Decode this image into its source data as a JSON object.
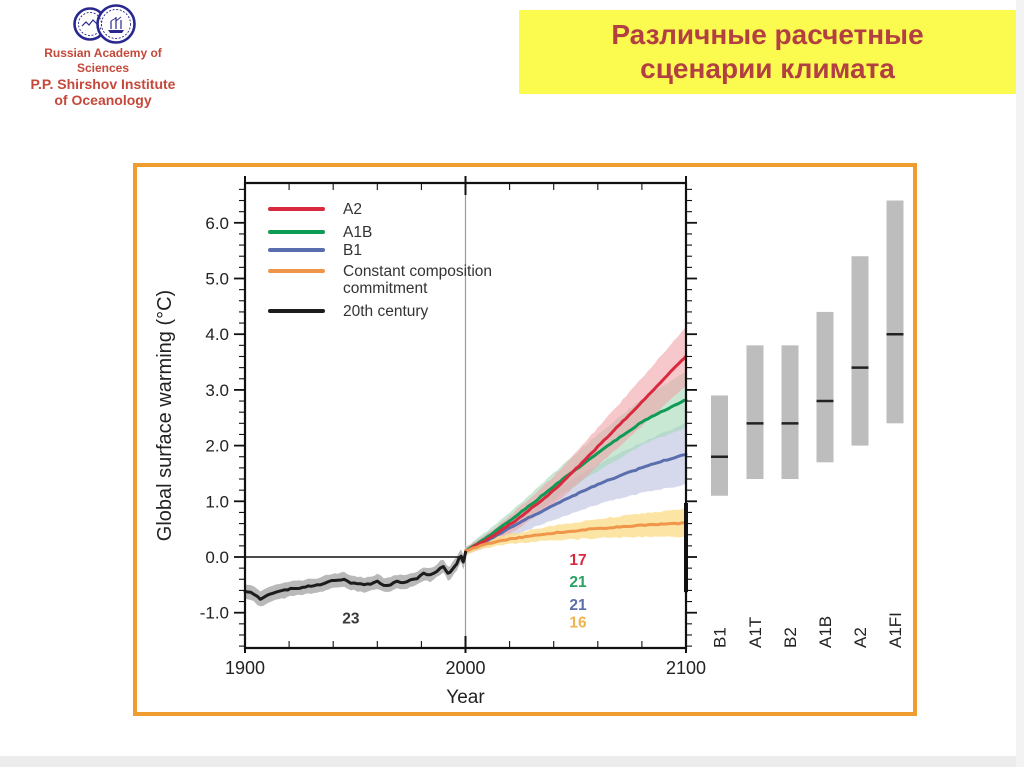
{
  "slide": {
    "institute": {
      "logo_icon": "two-overlapping-circles-emblem",
      "line1": "Russian Academy of Sciences",
      "line2": "P.P. Shirshov Institute",
      "line3": "of Oceanology"
    },
    "title": "Различные расчетные сценарии климата",
    "title_background": "#fbfb4f",
    "title_text_color": "#b23f42",
    "figure_border_color": "#f09d2f"
  },
  "chart_data": {
    "type": "line",
    "xlabel": "Year",
    "ylabel": "Global surface warming (°C)",
    "xlim": [
      1900,
      2100
    ],
    "ylim": [
      -1.63,
      6.72
    ],
    "x_ticks": [
      1900,
      2000,
      2100
    ],
    "x_minor_step": 20,
    "y_ticks": [
      -1.0,
      0.0,
      1.0,
      2.0,
      3.0,
      4.0,
      5.0,
      6.0
    ],
    "y_minor_step": 0.2,
    "grid": "off",
    "reference_year_line": 2000,
    "zero_line": {
      "value": 0.0,
      "from_year": 1900,
      "to_year": 2000
    },
    "legend_position": "top-left-inside",
    "legend": [
      {
        "label_lines": [
          "A2"
        ],
        "color": "#d8293f"
      },
      {
        "label_lines": [
          "A1B"
        ],
        "color": "#0f9b55"
      },
      {
        "label_lines": [
          "B1"
        ],
        "color": "#5a6dad"
      },
      {
        "label_lines": [
          "Constant composition",
          "commitment"
        ],
        "color": "#f0964b"
      },
      {
        "label_lines": [
          "20th century"
        ],
        "color": "#1c1c1c"
      }
    ],
    "series": [
      {
        "name": "20th century",
        "color": "#1c1c1c",
        "band_color": "#b9b9b9",
        "band_opacity": 1.0,
        "band_halfwidth": [
          0.14,
          0.12
        ],
        "points": [
          [
            1900,
            -0.62
          ],
          [
            1904,
            -0.66
          ],
          [
            1907,
            -0.75
          ],
          [
            1910,
            -0.7
          ],
          [
            1914,
            -0.63
          ],
          [
            1918,
            -0.6
          ],
          [
            1922,
            -0.56
          ],
          [
            1926,
            -0.55
          ],
          [
            1930,
            -0.52
          ],
          [
            1934,
            -0.5
          ],
          [
            1938,
            -0.44
          ],
          [
            1942,
            -0.42
          ],
          [
            1945,
            -0.4
          ],
          [
            1948,
            -0.46
          ],
          [
            1951,
            -0.48
          ],
          [
            1954,
            -0.5
          ],
          [
            1957,
            -0.48
          ],
          [
            1960,
            -0.44
          ],
          [
            1963,
            -0.5
          ],
          [
            1966,
            -0.5
          ],
          [
            1969,
            -0.44
          ],
          [
            1972,
            -0.46
          ],
          [
            1975,
            -0.42
          ],
          [
            1978,
            -0.38
          ],
          [
            1981,
            -0.3
          ],
          [
            1984,
            -0.32
          ],
          [
            1987,
            -0.25
          ],
          [
            1990,
            -0.16
          ],
          [
            1992,
            -0.3
          ],
          [
            1994,
            -0.22
          ],
          [
            1996,
            -0.12
          ],
          [
            1998,
            0.02
          ],
          [
            1999,
            -0.1
          ],
          [
            2000,
            0.1
          ]
        ]
      },
      {
        "name": "B1",
        "color": "#5a6dad",
        "band_color": "#b9c0de",
        "band_opacity": 0.6,
        "band_halfwidth": [
          0.07,
          0.55
        ],
        "points": [
          [
            2000,
            0.1
          ],
          [
            2010,
            0.3
          ],
          [
            2020,
            0.52
          ],
          [
            2030,
            0.73
          ],
          [
            2040,
            0.93
          ],
          [
            2050,
            1.12
          ],
          [
            2060,
            1.3
          ],
          [
            2070,
            1.46
          ],
          [
            2080,
            1.6
          ],
          [
            2090,
            1.73
          ],
          [
            2100,
            1.85
          ]
        ]
      },
      {
        "name": "A1B",
        "color": "#0f9b55",
        "band_color": "#a4d8b8",
        "band_opacity": 0.6,
        "band_halfwidth": [
          0.07,
          0.5
        ],
        "points": [
          [
            2000,
            0.1
          ],
          [
            2010,
            0.36
          ],
          [
            2020,
            0.65
          ],
          [
            2030,
            0.95
          ],
          [
            2040,
            1.27
          ],
          [
            2050,
            1.57
          ],
          [
            2060,
            1.87
          ],
          [
            2070,
            2.15
          ],
          [
            2080,
            2.42
          ],
          [
            2090,
            2.63
          ],
          [
            2100,
            2.82
          ]
        ]
      },
      {
        "name": "A2",
        "color": "#d8293f",
        "band_color": "#f0a4a8",
        "band_opacity": 0.6,
        "band_halfwidth": [
          0.07,
          0.52
        ],
        "points": [
          [
            2000,
            0.1
          ],
          [
            2010,
            0.32
          ],
          [
            2020,
            0.58
          ],
          [
            2030,
            0.88
          ],
          [
            2040,
            1.2
          ],
          [
            2050,
            1.58
          ],
          [
            2060,
            1.98
          ],
          [
            2070,
            2.38
          ],
          [
            2080,
            2.78
          ],
          [
            2090,
            3.2
          ],
          [
            2100,
            3.6
          ]
        ]
      },
      {
        "name": "Constant composition commitment",
        "color": "#f0964b",
        "band_color": "#fbdf8d",
        "band_opacity": 0.8,
        "band_halfwidth": [
          0.05,
          0.25
        ],
        "points": [
          [
            2000,
            0.1
          ],
          [
            2010,
            0.24
          ],
          [
            2020,
            0.32
          ],
          [
            2030,
            0.38
          ],
          [
            2040,
            0.43
          ],
          [
            2050,
            0.47
          ],
          [
            2060,
            0.51
          ],
          [
            2070,
            0.54
          ],
          [
            2080,
            0.57
          ],
          [
            2090,
            0.59
          ],
          [
            2100,
            0.61
          ]
        ]
      }
    ],
    "annotations": [
      {
        "text": "23",
        "color": "#3a3a3a",
        "x": 1948,
        "y": -1.1
      },
      {
        "text": "17",
        "color": "#d8293f",
        "x": 2051,
        "y": -0.05
      },
      {
        "text": "21",
        "color": "#2aa162",
        "x": 2051,
        "y": -0.45
      },
      {
        "text": "21",
        "color": "#5a6dad",
        "x": 2051,
        "y": -0.86
      },
      {
        "text": "16",
        "color": "#efb34f",
        "x": 2051,
        "y": -1.18
      }
    ],
    "scenario_bars": {
      "description": "best estimate and likely range per SRES scenario",
      "labels": [
        "B1",
        "A1T",
        "B2",
        "A1B",
        "A2",
        "A1FI"
      ],
      "low": [
        1.1,
        1.4,
        1.4,
        1.7,
        2.0,
        2.4
      ],
      "best": [
        1.8,
        2.4,
        2.4,
        2.8,
        3.4,
        4.0
      ],
      "high": [
        2.9,
        3.8,
        3.8,
        4.4,
        5.4,
        6.4
      ],
      "bar_color": "#bdbdbd",
      "best_line_color": "#222222"
    }
  }
}
